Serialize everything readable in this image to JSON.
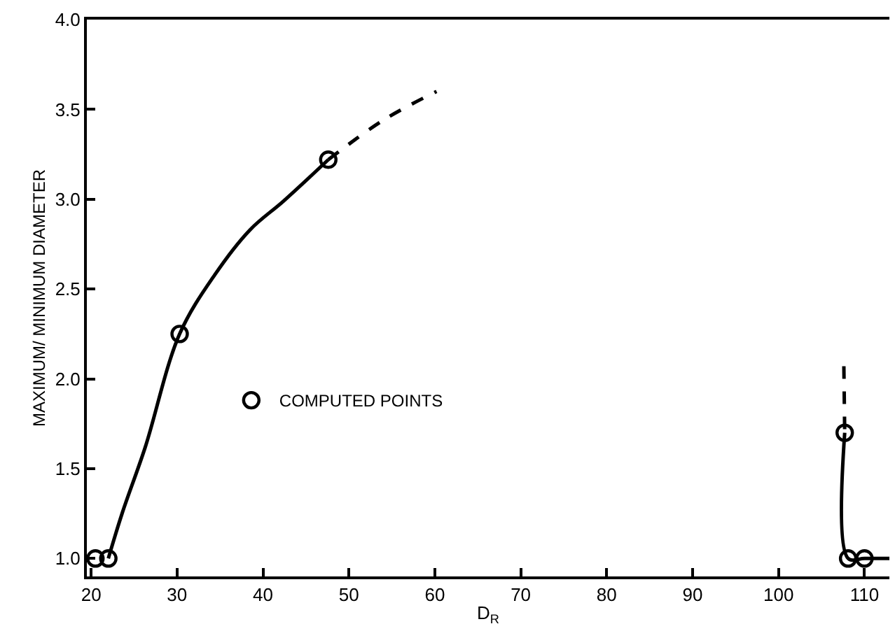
{
  "chart_data": {
    "type": "line",
    "xlabel": "D$_{R}$",
    "ylabel": "MAXIMUM/ MINIMUM DIAMETER",
    "xlim": [
      19.5,
      112.9
    ],
    "xticks": [
      20,
      30,
      40,
      50,
      60,
      70,
      80,
      90,
      100,
      110
    ],
    "ylim": [
      0.9,
      4.0
    ],
    "yticks": [
      {
        "value": 1,
        "label": "1.0"
      },
      {
        "value": 1.5,
        "label": "1.5"
      },
      {
        "value": 2,
        "label": "2.0"
      },
      {
        "value": 2.5,
        "label": "2.5"
      },
      {
        "value": 3,
        "label": "3.0"
      },
      {
        "value": 3.5,
        "label": "3.5"
      },
      {
        "value": 4,
        "label": "4.0"
      }
    ],
    "legend": "bottom left",
    "series": [
      {
        "color": "#000000",
        "line_style": "solid",
        "marker": "none",
        "x": [
          22.0,
          23.6,
          26.3,
          30.3,
          34.4,
          38.5,
          42.4,
          47.6
        ],
        "values": [
          1.0,
          1.25,
          1.62,
          2.25,
          2.58,
          2.83,
          2.99,
          3.22
        ]
      },
      {
        "color": "#000000",
        "line_style": "dashed",
        "marker": "none",
        "x": [
          47.6,
          54.0,
          60.2
        ],
        "values": [
          3.22,
          3.44,
          3.6
        ]
      },
      {
        "color": "#000000",
        "line_style": "solid",
        "marker": "none",
        "x": [
          107.7,
          108.1,
          110.0,
          112.9
        ],
        "values": [
          1.7,
          1.0,
          1.0,
          1.0
        ]
      },
      {
        "color": "#000000",
        "line_style": "dashed",
        "marker": "none",
        "x": [
          107.6,
          107.7
        ],
        "values": [
          2.07,
          1.7
        ]
      },
      {
        "type": "scatter",
        "name": "COMPUTED POINTS",
        "color": "#000000",
        "marker": "circle",
        "x": [
          20.5,
          22.0,
          30.3,
          47.6,
          107.7,
          108.1,
          110.0
        ],
        "values": [
          1.0,
          1.0,
          2.25,
          3.22,
          1.7,
          1.0,
          1.0
        ]
      }
    ]
  }
}
